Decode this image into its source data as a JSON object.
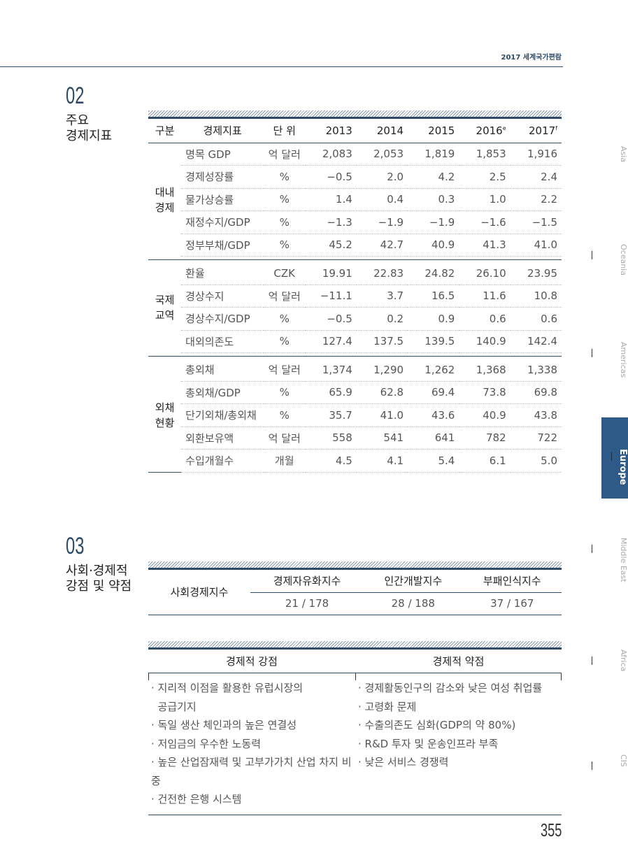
{
  "header": {
    "book_title": "2017 세계국가편람"
  },
  "side_tabs": [
    {
      "label": "Asia"
    },
    {
      "label": "Oceania"
    },
    {
      "label": "Americas"
    },
    {
      "label": "Europe",
      "active": true
    },
    {
      "label": "Middle East"
    },
    {
      "label": "Africa"
    },
    {
      "label": "CIS"
    }
  ],
  "section2": {
    "number": "02",
    "title_line1": "주요",
    "title_line2": "경제지표",
    "columns": [
      "구분",
      "경제지표",
      "단 위",
      "2013",
      "2014",
      "2015",
      "2016",
      "2017"
    ],
    "superscripts": {
      "2016": "e",
      "2017": "f"
    },
    "groups": [
      {
        "name_line1": "대내",
        "name_line2": "경제",
        "rows": [
          [
            "명목 GDP",
            "억 달러",
            "2,083",
            "2,053",
            "1,819",
            "1,853",
            "1,916"
          ],
          [
            "경제성장률",
            "%",
            "−0.5",
            "2.0",
            "4.2",
            "2.5",
            "2.4"
          ],
          [
            "물가상승률",
            "%",
            "1.4",
            "0.4",
            "0.3",
            "1.0",
            "2.2"
          ],
          [
            "재정수지/GDP",
            "%",
            "−1.3",
            "−1.9",
            "−1.9",
            "−1.6",
            "−1.5"
          ],
          [
            "정부부채/GDP",
            "%",
            "45.2",
            "42.7",
            "40.9",
            "41.3",
            "41.0"
          ]
        ]
      },
      {
        "name_line1": "국제",
        "name_line2": "교역",
        "rows": [
          [
            "환율",
            "CZK",
            "19.91",
            "22.83",
            "24.82",
            "26.10",
            "23.95"
          ],
          [
            "경상수지",
            "억 달러",
            "−11.1",
            "3.7",
            "16.5",
            "11.6",
            "10.8"
          ],
          [
            "경상수지/GDP",
            "%",
            "−0.5",
            "0.2",
            "0.9",
            "0.6",
            "0.6"
          ],
          [
            "대외의존도",
            "%",
            "127.4",
            "137.5",
            "139.5",
            "140.9",
            "142.4"
          ]
        ]
      },
      {
        "name_line1": "외채",
        "name_line2": "현황",
        "rows": [
          [
            "총외채",
            "억 달러",
            "1,374",
            "1,290",
            "1,262",
            "1,368",
            "1,338"
          ],
          [
            "총외채/GDP",
            "%",
            "65.9",
            "62.8",
            "69.4",
            "73.8",
            "69.8"
          ],
          [
            "단기외채/총외채",
            "%",
            "35.7",
            "41.0",
            "43.6",
            "40.9",
            "43.8"
          ],
          [
            "외환보유액",
            "억 달러",
            "558",
            "541",
            "641",
            "782",
            "722"
          ],
          [
            "수입개월수",
            "개월",
            "4.5",
            "4.1",
            "5.4",
            "6.1",
            "5.0"
          ]
        ]
      }
    ]
  },
  "section3": {
    "number": "03",
    "title_line1": "사회·경제적",
    "title_line2": "강점 및 약점",
    "index_table": {
      "row_label": "사회경제지수",
      "headers": [
        "경제자유화지수",
        "인간개발지수",
        "부패인식지수"
      ],
      "values": [
        "21 / 178",
        "28 / 188",
        "37 / 167"
      ]
    },
    "strengths_header": "경제적 강점",
    "weaknesses_header": "경제적 약점",
    "strengths": [
      "· 지리적 이점을 활용한 유럽시장의",
      "  공급기지",
      "· 독일 생산 체인과의 높은 연결성",
      "· 저임금의 우수한 노동력",
      "· 높은 산업잠재력 및 고부가가치 산업 차지 비중",
      "· 건전한 은행 시스템"
    ],
    "weaknesses": [
      "· 경제활동인구의 감소와 낮은 여성 취업률",
      "· 고령화 문제",
      "· 수출의존도 심화(GDP의 약 80%)",
      "· R&D 투자 및 운송인프라 부족",
      "· 낮은 서비스 경쟁력"
    ]
  },
  "page_number": "355",
  "colors": {
    "accent": "#2d5a86",
    "line": "#2d4a66"
  }
}
